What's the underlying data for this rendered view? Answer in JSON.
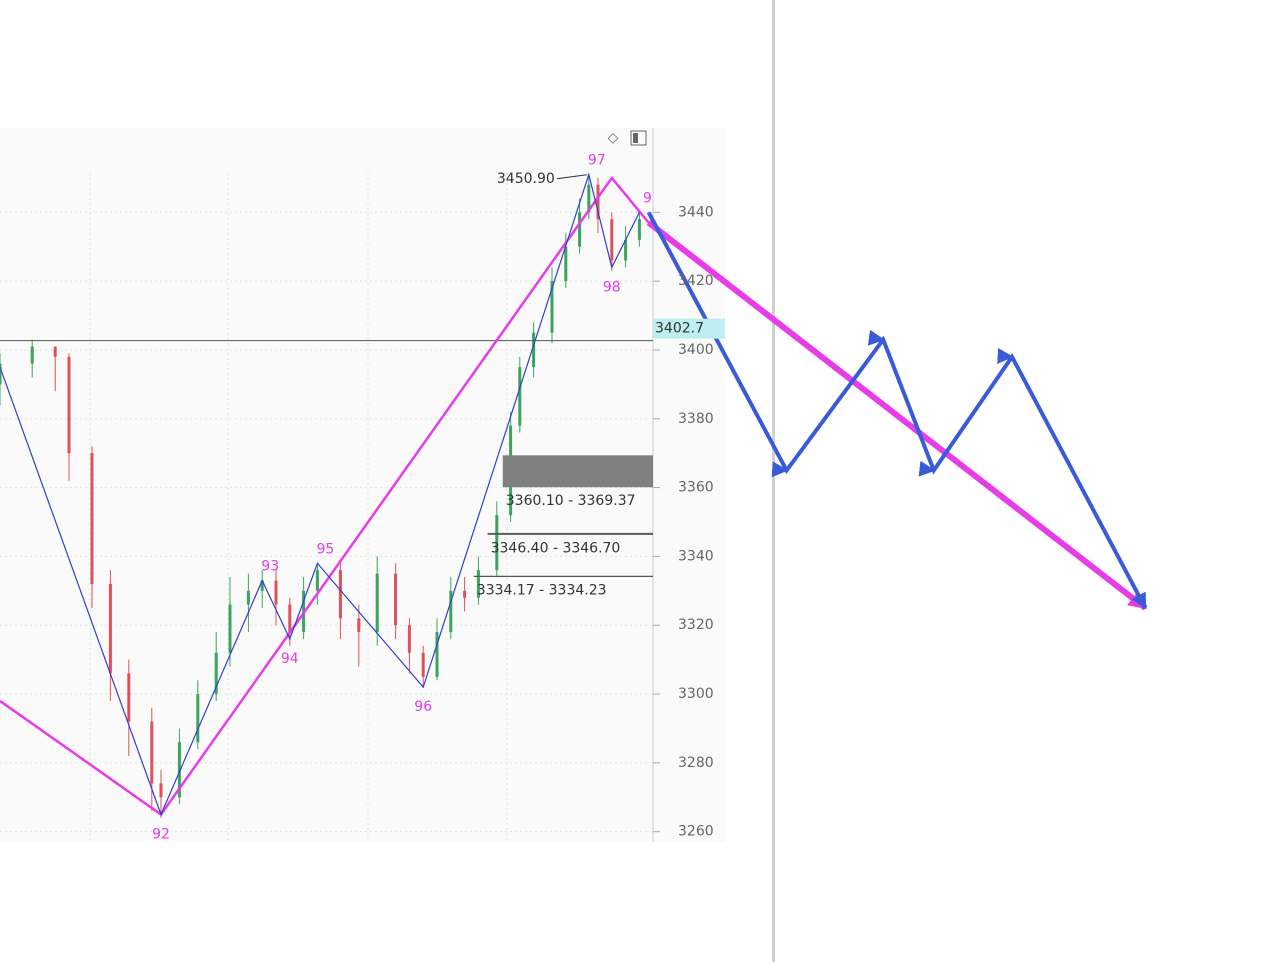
{
  "chart_data": {
    "type": "candlestick",
    "xlim": [
      0,
      280
    ],
    "xticks": [
      19.6,
      49.6,
      80,
      110.2
    ],
    "ylim": [
      3257,
      3464.5
    ],
    "yticks": [
      3260,
      3280,
      3300,
      3320,
      3340,
      3360,
      3380,
      3400,
      3420,
      3440
    ],
    "grid": true,
    "up_color": "#3aa55a",
    "down_color": "#e0505a",
    "candles": {
      "x": [
        0,
        7,
        12,
        15,
        20,
        24,
        28,
        33,
        35,
        39,
        43,
        47,
        50,
        54,
        57,
        60,
        63,
        66,
        69,
        74,
        78,
        82,
        86,
        89,
        92,
        95,
        98,
        101,
        104,
        108,
        111,
        113,
        116,
        120,
        123,
        126,
        128,
        130,
        133,
        136,
        139
      ],
      "open": [
        3390,
        3396,
        3401,
        3398,
        3370,
        3332,
        3306,
        3292,
        3274,
        3270,
        3286,
        3300,
        3312,
        3326,
        3330,
        3333,
        3326,
        3318,
        3330,
        3336,
        3322,
        3318,
        3335,
        3320,
        3312,
        3305,
        3318,
        3330,
        3328,
        3336,
        3352,
        3378,
        3395,
        3405,
        3420,
        3430,
        3440,
        3448,
        3438,
        3426,
        3432
      ],
      "close": [
        3396,
        3401,
        3398,
        3370,
        3332,
        3306,
        3292,
        3274,
        3270,
        3286,
        3300,
        3312,
        3326,
        3330,
        3333,
        3326,
        3318,
        3330,
        3336,
        3322,
        3318,
        3335,
        3320,
        3312,
        3305,
        3318,
        3330,
        3328,
        3336,
        3352,
        3378,
        3395,
        3405,
        3420,
        3430,
        3440,
        3448,
        3438,
        3426,
        3432,
        3438
      ],
      "high": [
        3399,
        3403,
        3401,
        3399,
        3372,
        3336,
        3310,
        3296,
        3278,
        3290,
        3304,
        3318,
        3334,
        3335,
        3336,
        3336,
        3328,
        3334,
        3338,
        3338,
        3326,
        3340,
        3338,
        3322,
        3314,
        3322,
        3334,
        3334,
        3340,
        3356,
        3382,
        3398,
        3408,
        3424,
        3434,
        3444,
        3451,
        3450,
        3440,
        3436,
        3440
      ],
      "low": [
        3384,
        3392,
        3388,
        3362,
        3325,
        3298,
        3282,
        3266,
        3264,
        3268,
        3284,
        3298,
        3308,
        3318,
        3325,
        3320,
        3314,
        3316,
        3326,
        3316,
        3308,
        3314,
        3316,
        3306,
        3302,
        3304,
        3316,
        3324,
        3326,
        3334,
        3350,
        3376,
        3392,
        3402,
        3418,
        3428,
        3438,
        3434,
        3423,
        3424,
        3430
      ]
    },
    "wave": {
      "name": "wave",
      "color": "#2f3fd0",
      "x": [
        0,
        35,
        57,
        63,
        69,
        92,
        128,
        133,
        139
      ],
      "values": [
        3395,
        3265,
        3333,
        3316,
        3338,
        3302,
        3451,
        3424,
        3440
      ],
      "labels": [
        null,
        "92",
        "93",
        "94",
        "95",
        "96",
        "97",
        "98",
        "9"
      ],
      "label_color": "#e83ce8"
    },
    "channel": {
      "color": "#e83ce8",
      "x": [
        0,
        35,
        133,
        141
      ],
      "values": [
        3298,
        3265,
        3450,
        3437
      ]
    },
    "projection_blue": {
      "color": "#3a5bd8",
      "x": [
        141,
        171,
        192,
        203,
        220,
        249
      ],
      "values": [
        3440,
        3365,
        3403,
        3365,
        3398,
        3325
      ]
    },
    "projection_magenta": {
      "color": "#e83ce8",
      "x": [
        141,
        249
      ],
      "values": [
        3437,
        3325
      ]
    },
    "last_price": {
      "value": 3402.7,
      "label": "3402.7"
    },
    "peak": {
      "value": 3450.9,
      "label": "3450.90",
      "x": 128
    },
    "zones": [
      {
        "x": 109.3,
        "low": 3360.1,
        "high": 3369.37,
        "label": "3360.10 - 3369.37",
        "filled": true
      },
      {
        "x": 106,
        "low": 3346.4,
        "high": 3346.7,
        "label": "3346.40 - 3346.70",
        "filled": false
      },
      {
        "x": 103,
        "low": 3334.17,
        "high": 3334.23,
        "label": "3334.17 - 3334.23",
        "filled": false
      }
    ]
  }
}
